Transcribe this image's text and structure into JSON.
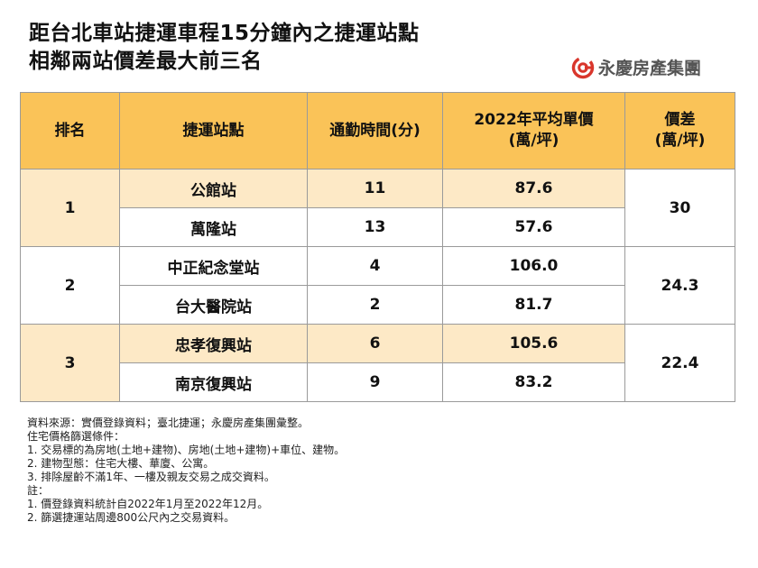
{
  "title": {
    "line1": "距台北車站捷運車程15分鐘內之捷運站點",
    "line2": "相鄰兩站價差最大前三名"
  },
  "brand": {
    "name": "永慶房產集團",
    "logo_icon": "yungching-logo-icon",
    "color": "#d9362c"
  },
  "table": {
    "headers": {
      "rank": "排名",
      "station": "捷運站點",
      "commute": "通勤時間(分)",
      "price_line1": "2022年平均單價",
      "price_line2": "(萬/坪)",
      "diff_line1": "價差",
      "diff_line2": "(萬/坪)"
    },
    "groups": [
      {
        "rank": "1",
        "diff": "30",
        "rows": [
          {
            "station": "公館站",
            "commute": "11",
            "price": "87.6"
          },
          {
            "station": "萬隆站",
            "commute": "13",
            "price": "57.6"
          }
        ]
      },
      {
        "rank": "2",
        "diff": "24.3",
        "rows": [
          {
            "station": "中正紀念堂站",
            "commute": "4",
            "price": "106.0"
          },
          {
            "station": "台大醫院站",
            "commute": "2",
            "price": "81.7"
          }
        ]
      },
      {
        "rank": "3",
        "diff": "22.4",
        "rows": [
          {
            "station": "忠孝復興站",
            "commute": "6",
            "price": "105.6"
          },
          {
            "station": "南京復興站",
            "commute": "9",
            "price": "83.2"
          }
        ]
      }
    ],
    "colors": {
      "header": "#fac358",
      "band": "#fde9c6",
      "white": "#ffffff"
    }
  },
  "notes": [
    "資料來源：實價登錄資料；臺北捷運；永慶房產集團彙整。",
    "住宅價格篩選條件：",
    "1.  交易標的為房地(土地+建物)、房地(土地+建物)+車位、建物。",
    "2.  建物型態：住宅大樓、華廈、公寓。",
    "3.  排除屋齡不滿1年、一樓及親友交易之成交資料。",
    "註：",
    "1.  價登錄資料統計自2022年1月至2022年12月。",
    "2.  篩選捷運站周邊800公尺內之交易資料。"
  ]
}
